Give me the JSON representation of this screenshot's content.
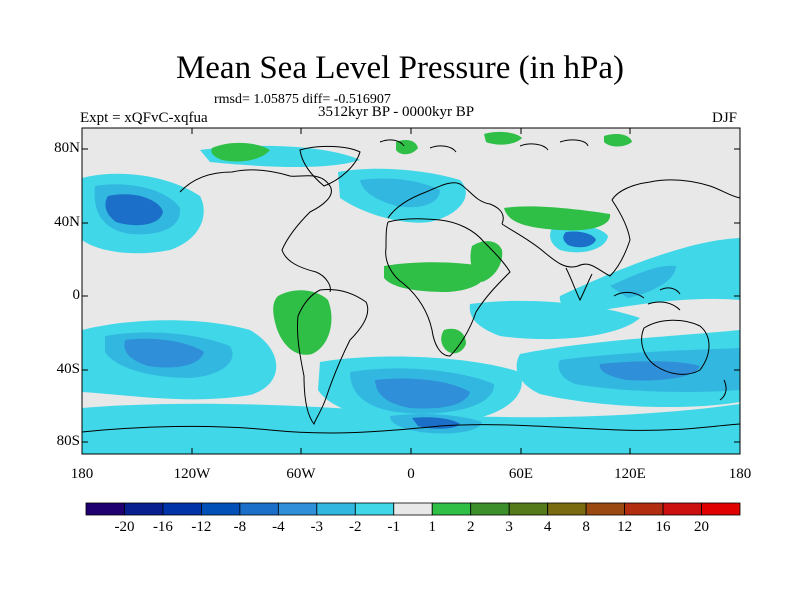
{
  "title": "Mean Sea Level Pressure (in hPa)",
  "stats": "rmsd= 1.05875 diff= -0.516907",
  "experiment": "Expt = xQFvC-xqfua",
  "period": "3512kyr BP - 0000kyr BP",
  "season": "DJF",
  "lat_labels": [
    "80N",
    "40N",
    "0",
    "40S",
    "80S"
  ],
  "lon_labels": [
    "180",
    "120W",
    "60W",
    "0",
    "60E",
    "120E",
    "180"
  ],
  "colorbar": {
    "labels": [
      "-20",
      "-16",
      "-12",
      "-8",
      "-4",
      "-3",
      "-2",
      "-1",
      "1",
      "2",
      "3",
      "4",
      "8",
      "12",
      "16",
      "20"
    ],
    "colors": [
      "#200070",
      "#0a1f8f",
      "#0033a8",
      "#0050b8",
      "#1c6fc8",
      "#2f8fd8",
      "#32b8e0",
      "#40d8e8",
      "#e8e8e8",
      "#2fbf46",
      "#3c8f2a",
      "#557a1a",
      "#7a6a10",
      "#9a4a10",
      "#b22c10",
      "#cc1010",
      "#e00000"
    ]
  },
  "map_colors": {
    "land_bg": "#e8e8e8",
    "neg1": "#40d8e8",
    "neg2": "#32b8e0",
    "neg3": "#2f8fd8",
    "neg4": "#1c6fc8",
    "pos1": "#2fbf46"
  }
}
